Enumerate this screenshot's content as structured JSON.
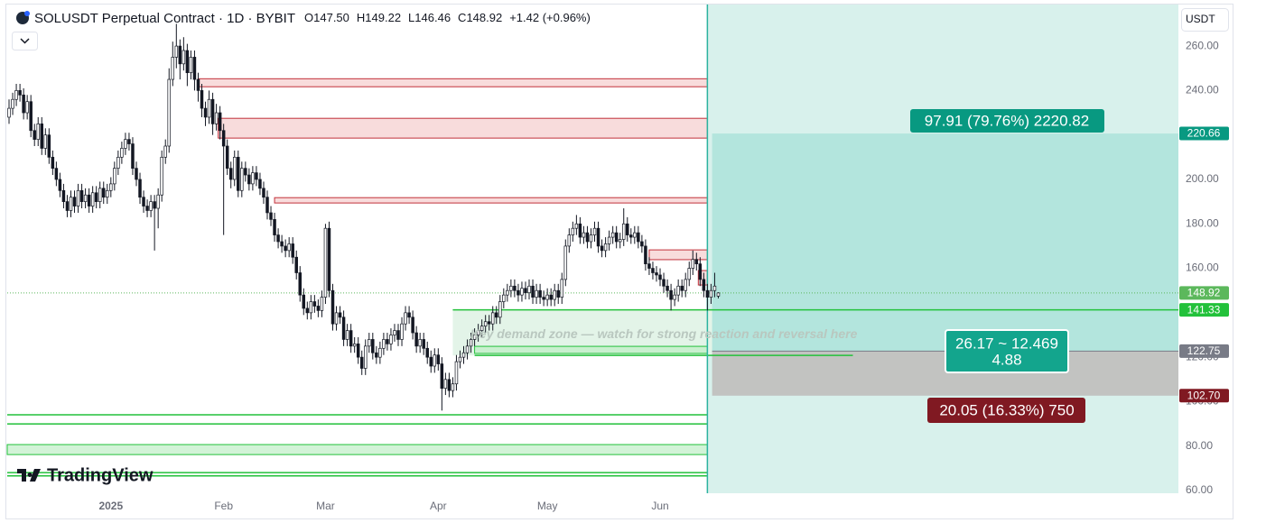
{
  "header": {
    "symbol": "SOLUSDT Perpetual Contract · 1D · BYBIT",
    "fields": [
      {
        "key": "O",
        "value": "147.50"
      },
      {
        "key": "H",
        "value": "149.22"
      },
      {
        "key": "L",
        "value": "146.46"
      },
      {
        "key": "C",
        "value": "148.92"
      }
    ],
    "change": "+1.42 (+0.96%)",
    "currency": "USDT",
    "brand": "TradingView"
  },
  "chart_data": {
    "type": "candlestick",
    "up_color": "#ffffff",
    "down_color": "#131722",
    "wick_color": "#131722",
    "xlim": [
      -0.5,
      321.5
    ],
    "xticks": [
      {
        "value": 28,
        "label": "2025"
      },
      {
        "value": 59,
        "label": "Feb"
      },
      {
        "value": 87,
        "label": "Mar"
      },
      {
        "value": 118,
        "label": "Apr"
      },
      {
        "value": 148,
        "label": "May"
      },
      {
        "value": 179,
        "label": "Jun"
      }
    ],
    "ylim": [
      58.8,
      278.7
    ],
    "yticks": [
      {
        "value": 60,
        "label": "60.00"
      },
      {
        "value": 80,
        "label": "80.00"
      },
      {
        "value": 100,
        "label": "100.00"
      },
      {
        "value": 120,
        "label": "120.00"
      },
      {
        "value": 140,
        "label": "140.00"
      },
      {
        "value": 160,
        "label": "160.00"
      },
      {
        "value": 180,
        "label": "180.00"
      },
      {
        "value": 200,
        "label": "200.00"
      },
      {
        "value": 220,
        "label": "220.00"
      },
      {
        "value": 240,
        "label": "240.00"
      },
      {
        "value": 260,
        "label": "260.00"
      }
    ],
    "candles": [
      [
        228,
        236,
        225,
        232
      ],
      [
        232,
        239,
        229,
        236
      ],
      [
        236,
        243,
        233,
        240
      ],
      [
        240,
        243,
        235,
        238
      ],
      [
        238,
        241,
        227,
        230
      ],
      [
        230,
        238,
        227,
        235
      ],
      [
        235,
        238,
        219,
        222
      ],
      [
        222,
        225,
        215,
        218
      ],
      [
        218,
        228,
        215,
        225
      ],
      [
        225,
        228,
        211,
        214
      ],
      [
        214,
        223,
        211,
        220
      ],
      [
        220,
        223,
        207,
        210
      ],
      [
        210,
        213,
        202,
        205
      ],
      [
        205,
        208,
        197,
        200
      ],
      [
        200,
        203,
        192,
        195
      ],
      [
        195,
        198,
        187,
        190
      ],
      [
        190,
        193,
        183,
        186
      ],
      [
        186,
        195,
        183,
        192
      ],
      [
        192,
        195,
        185,
        188
      ],
      [
        188,
        198,
        185,
        195
      ],
      [
        195,
        198,
        187,
        190
      ],
      [
        190,
        196,
        187,
        193
      ],
      [
        193,
        196,
        185,
        188
      ],
      [
        188,
        197,
        185,
        194
      ],
      [
        194,
        197,
        187,
        190
      ],
      [
        190,
        199,
        187,
        196
      ],
      [
        196,
        199,
        189,
        192
      ],
      [
        192,
        198,
        189,
        195
      ],
      [
        195,
        201,
        192,
        198
      ],
      [
        198,
        208,
        195,
        205
      ],
      [
        205,
        213,
        202,
        210
      ],
      [
        210,
        217,
        207,
        214
      ],
      [
        214,
        221,
        211,
        218
      ],
      [
        218,
        221,
        213,
        216
      ],
      [
        216,
        219,
        202,
        205
      ],
      [
        205,
        208,
        197,
        200
      ],
      [
        200,
        203,
        189,
        192
      ],
      [
        192,
        195,
        185,
        188
      ],
      [
        188,
        191,
        183,
        186
      ],
      [
        186,
        193,
        183,
        190
      ],
      [
        190,
        193,
        168,
        187
      ],
      [
        187,
        196,
        178,
        193
      ],
      [
        193,
        213,
        190,
        210
      ],
      [
        210,
        218,
        207,
        215
      ],
      [
        215,
        250,
        212,
        245
      ],
      [
        245,
        262,
        242,
        255
      ],
      [
        255,
        270,
        250,
        260
      ],
      [
        260,
        263,
        245,
        252
      ],
      [
        252,
        264,
        249,
        258
      ],
      [
        258,
        261,
        242,
        248
      ],
      [
        248,
        258,
        245,
        255
      ],
      [
        255,
        258,
        240,
        245
      ],
      [
        245,
        248,
        235,
        240
      ],
      [
        240,
        243,
        228,
        232
      ],
      [
        232,
        235,
        224,
        228
      ],
      [
        228,
        240,
        225,
        236
      ],
      [
        236,
        239,
        220,
        225
      ],
      [
        225,
        234,
        222,
        230
      ],
      [
        230,
        233,
        218,
        222
      ],
      [
        222,
        225,
        175,
        215
      ],
      [
        215,
        218,
        202,
        205
      ],
      [
        205,
        208,
        196,
        200
      ],
      [
        200,
        213,
        197,
        210
      ],
      [
        210,
        213,
        192,
        195
      ],
      [
        195,
        208,
        192,
        205
      ],
      [
        205,
        208,
        199,
        202
      ],
      [
        202,
        205,
        195,
        198
      ],
      [
        198,
        206,
        195,
        203
      ],
      [
        203,
        206,
        197,
        200
      ],
      [
        200,
        203,
        193,
        196
      ],
      [
        196,
        199,
        189,
        192
      ],
      [
        192,
        195,
        182,
        185
      ],
      [
        185,
        188,
        179,
        182
      ],
      [
        182,
        185,
        172,
        175
      ],
      [
        175,
        178,
        169,
        172
      ],
      [
        172,
        175,
        167,
        170
      ],
      [
        170,
        173,
        165,
        168
      ],
      [
        168,
        174,
        165,
        171
      ],
      [
        171,
        174,
        162,
        165
      ],
      [
        165,
        168,
        155,
        158
      ],
      [
        158,
        161,
        145,
        148
      ],
      [
        148,
        151,
        139,
        142
      ],
      [
        142,
        145,
        137,
        140
      ],
      [
        140,
        148,
        137,
        145
      ],
      [
        145,
        148,
        140,
        143
      ],
      [
        143,
        146,
        138,
        141
      ],
      [
        141,
        150,
        138,
        147
      ],
      [
        147,
        180,
        144,
        178
      ],
      [
        178,
        181,
        147,
        150
      ],
      [
        150,
        153,
        132,
        135
      ],
      [
        135,
        143,
        132,
        140
      ],
      [
        140,
        143,
        135,
        138
      ],
      [
        138,
        141,
        125,
        128
      ],
      [
        128,
        135,
        125,
        132
      ],
      [
        132,
        135,
        122,
        125
      ],
      [
        125,
        129,
        122,
        126
      ],
      [
        126,
        129,
        117,
        120
      ],
      [
        120,
        123,
        112,
        115
      ],
      [
        115,
        128,
        112,
        125
      ],
      [
        125,
        131,
        122,
        128
      ],
      [
        128,
        131,
        119,
        122
      ],
      [
        122,
        125,
        117,
        120
      ],
      [
        120,
        127,
        117,
        124
      ],
      [
        124,
        131,
        121,
        128
      ],
      [
        128,
        131,
        123,
        126
      ],
      [
        126,
        133,
        123,
        130
      ],
      [
        130,
        135,
        127,
        132
      ],
      [
        132,
        135,
        125,
        128
      ],
      [
        128,
        138,
        125,
        135
      ],
      [
        135,
        143,
        132,
        140
      ],
      [
        140,
        143,
        135,
        138
      ],
      [
        138,
        141,
        128,
        131
      ],
      [
        131,
        134,
        122,
        125
      ],
      [
        125,
        131,
        122,
        128
      ],
      [
        128,
        131,
        121,
        124
      ],
      [
        124,
        127,
        117,
        120
      ],
      [
        120,
        123,
        113,
        116
      ],
      [
        116,
        124,
        113,
        121
      ],
      [
        121,
        124,
        114,
        117
      ],
      [
        117,
        120,
        96,
        106
      ],
      [
        106,
        113,
        103,
        110
      ],
      [
        110,
        113,
        102,
        105
      ],
      [
        105,
        111,
        102,
        108
      ],
      [
        108,
        121,
        105,
        118
      ],
      [
        118,
        123,
        115,
        120
      ],
      [
        120,
        125,
        117,
        122
      ],
      [
        122,
        128,
        119,
        125
      ],
      [
        125,
        131,
        122,
        128
      ],
      [
        128,
        133,
        125,
        130
      ],
      [
        130,
        135,
        127,
        132
      ],
      [
        132,
        137,
        129,
        134
      ],
      [
        134,
        139,
        131,
        136
      ],
      [
        136,
        139,
        132,
        135
      ],
      [
        135,
        143,
        132,
        140
      ],
      [
        140,
        143,
        135,
        138
      ],
      [
        138,
        148,
        135,
        145
      ],
      [
        145,
        151,
        142,
        148
      ],
      [
        148,
        153,
        145,
        150
      ],
      [
        150,
        155,
        147,
        152
      ],
      [
        152,
        155,
        147,
        150
      ],
      [
        150,
        153,
        145,
        148
      ],
      [
        148,
        154,
        145,
        151
      ],
      [
        151,
        154,
        146,
        149
      ],
      [
        149,
        155,
        146,
        152
      ],
      [
        152,
        155,
        144,
        147
      ],
      [
        147,
        153,
        144,
        150
      ],
      [
        150,
        153,
        144,
        147
      ],
      [
        147,
        150,
        143,
        146
      ],
      [
        146,
        151,
        143,
        148
      ],
      [
        148,
        151,
        143,
        146
      ],
      [
        146,
        153,
        143,
        150
      ],
      [
        150,
        153,
        144,
        147
      ],
      [
        147,
        158,
        144,
        155
      ],
      [
        155,
        173,
        152,
        170
      ],
      [
        170,
        178,
        167,
        175
      ],
      [
        175,
        181,
        172,
        178
      ],
      [
        178,
        184,
        175,
        180
      ],
      [
        180,
        183,
        171,
        174
      ],
      [
        174,
        179,
        171,
        176
      ],
      [
        176,
        179,
        169,
        172
      ],
      [
        172,
        178,
        169,
        175
      ],
      [
        175,
        181,
        172,
        178
      ],
      [
        178,
        181,
        167,
        170
      ],
      [
        170,
        173,
        165,
        168
      ],
      [
        168,
        174,
        165,
        171
      ],
      [
        171,
        177,
        168,
        174
      ],
      [
        174,
        179,
        171,
        176
      ],
      [
        176,
        179,
        169,
        172
      ],
      [
        172,
        176,
        169,
        173
      ],
      [
        173,
        187,
        170,
        180
      ],
      [
        180,
        183,
        172,
        175
      ],
      [
        175,
        178,
        171,
        174
      ],
      [
        174,
        179,
        171,
        176
      ],
      [
        176,
        179,
        169,
        172
      ],
      [
        172,
        175,
        167,
        170
      ],
      [
        170,
        173,
        159,
        162
      ],
      [
        162,
        165,
        157,
        160
      ],
      [
        160,
        163,
        155,
        158
      ],
      [
        158,
        161,
        154,
        157
      ],
      [
        157,
        160,
        152,
        155
      ],
      [
        155,
        158,
        149,
        152
      ],
      [
        152,
        155,
        147,
        150
      ],
      [
        150,
        153,
        141,
        146
      ],
      [
        146,
        151,
        143,
        148
      ],
      [
        148,
        155,
        145,
        152
      ],
      [
        152,
        155,
        147,
        150
      ],
      [
        150,
        158,
        147,
        155
      ],
      [
        155,
        163,
        152,
        160
      ],
      [
        160,
        168,
        157,
        164
      ],
      [
        164,
        167,
        159,
        162
      ],
      [
        162,
        165,
        152,
        155
      ],
      [
        155,
        158,
        147,
        150
      ],
      [
        150,
        153,
        141,
        147
      ],
      [
        147,
        153,
        144,
        150
      ],
      [
        150,
        158,
        147,
        152
      ],
      [
        147.5,
        149.22,
        146.46,
        148.92
      ]
    ],
    "zones": [
      {
        "y": [
          245.3,
          241.7
        ],
        "x": [
          52,
          192
        ],
        "fill": "#f8dcdc",
        "stroke": "#c2303a"
      },
      {
        "y": [
          227.5,
          218.6
        ],
        "x": [
          57.5,
          192
        ],
        "fill": "#f8dcdc",
        "stroke": "#c2303a"
      },
      {
        "y": [
          191.8,
          189.4
        ],
        "x": [
          73,
          192
        ],
        "fill": "#f8dcdc",
        "stroke": "#c2303a"
      },
      {
        "y": [
          168.3,
          163.9
        ],
        "x": [
          176,
          192
        ],
        "fill": "#f8dcdc",
        "stroke": "#c2303a"
      },
      {
        "y": [
          159,
          152.5
        ],
        "x": [
          189.5,
          192
        ],
        "fill": "#f8dcdc",
        "stroke": "#c2303a"
      },
      {
        "y": [
          141.3,
          120.8
        ],
        "x": [
          122,
          232
        ],
        "fill": "#e3f4e8",
        "stroke": "none"
      },
      {
        "y": [
          124.9,
          121.7
        ],
        "x": [
          128,
          192
        ],
        "fill": "#c9f0cf",
        "stroke": "#22c13a"
      },
      {
        "y": [
          80.7,
          76.2
        ],
        "x": [
          -0.5,
          192
        ],
        "fill": "#d2f3d7",
        "stroke": "#22c13a"
      }
    ],
    "lines": [
      {
        "y": 141.33,
        "x": [
          122,
          321.5
        ],
        "color": "#22c13a"
      },
      {
        "y": 120.8,
        "x": [
          128,
          232
        ],
        "color": "#22c13a"
      },
      {
        "y": 94.1,
        "x": [
          -0.5,
          192
        ],
        "color": "#22c13a"
      },
      {
        "y": 90,
        "x": [
          -0.5,
          192
        ],
        "color": "#22c13a"
      },
      {
        "y": 68.1,
        "x": [
          -0.5,
          192
        ],
        "color": "#22c13a"
      },
      {
        "y": 66.6,
        "x": [
          -0.5,
          192
        ],
        "color": "#22c13a"
      }
    ],
    "annotation": {
      "text": "Key demand zone — watch for strong reaction and reversal here",
      "x": 180,
      "y": 130
    },
    "position": {
      "x": [
        193.3,
        321.5
      ],
      "start": 192,
      "target": {
        "value": 220.66,
        "label": "220.66"
      },
      "entry": {
        "value": 122.75,
        "label": "122.75"
      },
      "stop": {
        "value": 102.7,
        "label": "102.70"
      },
      "target_text": "97.91 (79.76%) 2220.82",
      "middle_text": [
        "26.17 ~ 12.469",
        "4.88"
      ],
      "stop_text": "20.05 (16.33%) 750",
      "profit_color": "#b3e5dd",
      "loss_color": "#c2c3c1",
      "zone_color": "#d8f1ec",
      "line_color": "#2bb39f"
    },
    "price_labels": [
      {
        "value": 148.92,
        "label": "148.92",
        "color": "#5cb85c"
      },
      {
        "value": 141.33,
        "label": "141.33",
        "color": "#22c13a"
      }
    ]
  }
}
